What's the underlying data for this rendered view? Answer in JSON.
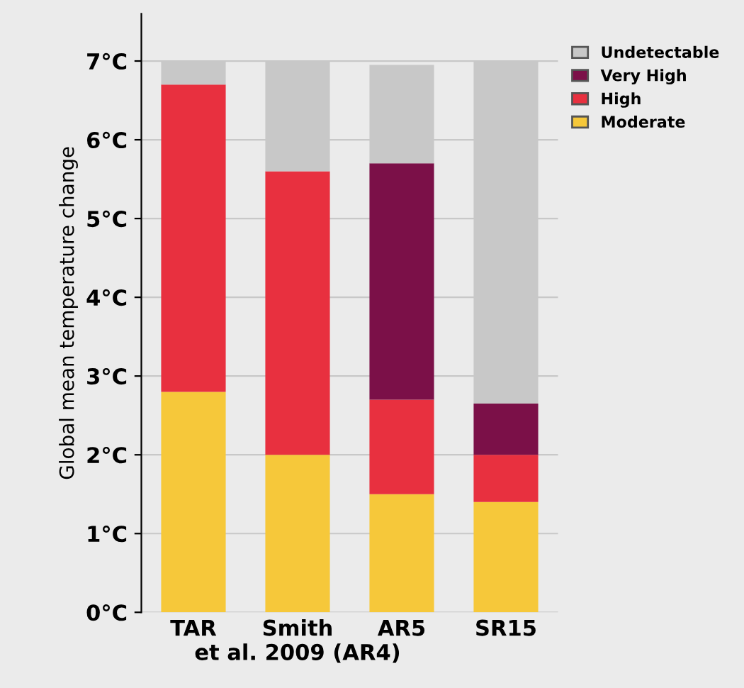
{
  "chart_data": {
    "type": "bar",
    "stacked": true,
    "ylabel": "Global mean temperature change",
    "categories": [
      "TAR",
      "Smith\net al. 2009 (AR4)",
      "AR5",
      "SR15"
    ],
    "series": [
      {
        "name": "Moderate",
        "color": "#f6c83a",
        "values": [
          2.8,
          2.0,
          1.5,
          1.4
        ]
      },
      {
        "name": "High",
        "color": "#e8303f",
        "values": [
          3.9,
          3.6,
          1.2,
          0.6
        ]
      },
      {
        "name": "Very High",
        "color": "#7b1048",
        "values": [
          0,
          0,
          3.0,
          0.65
        ]
      },
      {
        "name": "Undetectable",
        "color": "#c8c8c8",
        "values": [
          0.3,
          1.4,
          1.25,
          4.35
        ]
      }
    ],
    "ylim": [
      0,
      7.6
    ],
    "yticks": [
      {
        "value": 0,
        "label": "0°C"
      },
      {
        "value": 1,
        "label": "1°C"
      },
      {
        "value": 2,
        "label": "2°C"
      },
      {
        "value": 3,
        "label": "3°C"
      },
      {
        "value": 4,
        "label": "4°C"
      },
      {
        "value": 5,
        "label": "5°C"
      },
      {
        "value": 6,
        "label": "6°C"
      },
      {
        "value": 7,
        "label": "7°C"
      }
    ],
    "grid": "y",
    "legend": "top right"
  }
}
